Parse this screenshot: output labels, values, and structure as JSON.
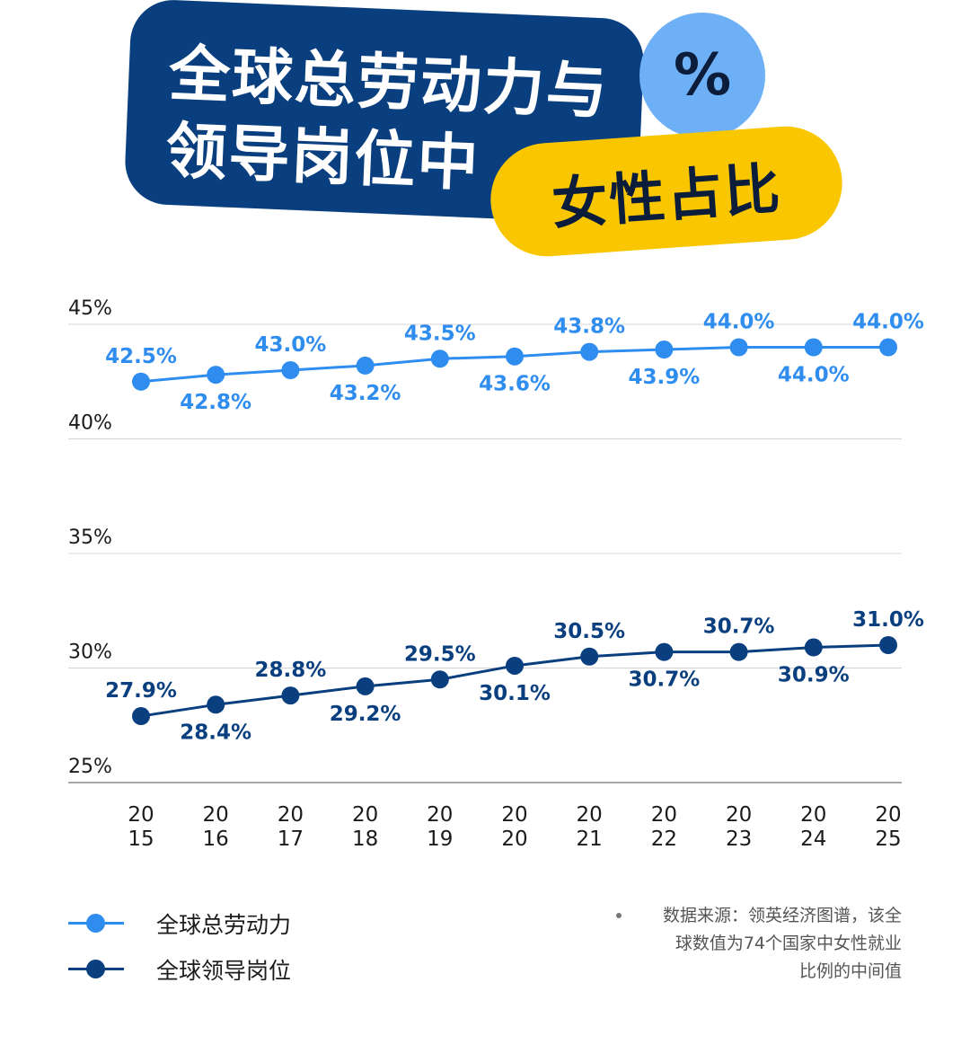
{
  "header": {
    "title_line1": "全球总劳动力与",
    "title_line2": "领导岗位中",
    "badge_symbol": "%",
    "highlight": "女性占比"
  },
  "colors": {
    "navy": "#0a3f7f",
    "series_workforce": "#2f8df0",
    "series_leadership": "#0a3f7f",
    "badge_blue": "#6eb0f6",
    "pill_yellow": "#f9c600"
  },
  "chart_data": {
    "type": "line",
    "x": [
      "2015",
      "2016",
      "2017",
      "2018",
      "2019",
      "2020",
      "2021",
      "2022",
      "2023",
      "2024",
      "2025"
    ],
    "x_tick_labels": [
      [
        "20",
        "15"
      ],
      [
        "20",
        "16"
      ],
      [
        "20",
        "17"
      ],
      [
        "20",
        "18"
      ],
      [
        "20",
        "19"
      ],
      [
        "20",
        "20"
      ],
      [
        "20",
        "21"
      ],
      [
        "20",
        "22"
      ],
      [
        "20",
        "23"
      ],
      [
        "20",
        "24"
      ],
      [
        "20",
        "25"
      ]
    ],
    "series": [
      {
        "name": "全球总劳动力",
        "values": [
          42.5,
          42.8,
          43.0,
          43.2,
          43.5,
          43.6,
          43.8,
          43.9,
          44.0,
          44.0,
          44.0
        ],
        "labels": [
          "42.5%",
          "42.8%",
          "43.0%",
          "43.2%",
          "43.5%",
          "43.6%",
          "43.8%",
          "43.9%",
          "44.0%",
          "44.0%",
          "44.0%"
        ]
      },
      {
        "name": "全球领导岗位",
        "values": [
          27.9,
          28.4,
          28.8,
          29.2,
          29.5,
          30.1,
          30.5,
          30.7,
          30.7,
          30.9,
          31.0
        ],
        "labels": [
          "27.9%",
          "28.4%",
          "28.8%",
          "29.2%",
          "29.5%",
          "30.1%",
          "30.5%",
          "30.7%",
          "30.7%",
          "30.9%",
          "31.0%"
        ]
      }
    ],
    "y_ticks": [
      25,
      30,
      35,
      40,
      45
    ],
    "y_tick_labels": [
      "25%",
      "30%",
      "35%",
      "40%",
      "45%"
    ],
    "ylim": [
      25,
      45
    ],
    "grid": true,
    "legend_position": "bottom-left"
  },
  "legend": {
    "items": [
      {
        "label": "全球总劳动力"
      },
      {
        "label": "全球领导岗位"
      }
    ]
  },
  "source": {
    "line1": "数据来源：领英经济图谱，该全",
    "line2": "球数值为74个国家中女性就业",
    "line3": "比例的中间值"
  }
}
